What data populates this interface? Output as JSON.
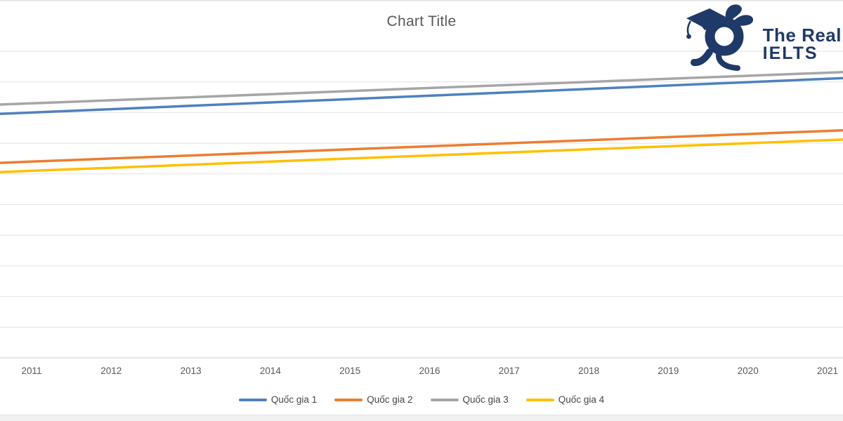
{
  "page": {
    "background": "#ffffff",
    "top_border_color": "#e8e8e8",
    "bottom_strip_color": "#f1f1f1"
  },
  "logo": {
    "brand_line1": "The Real",
    "brand_line2": "IELTS",
    "color": "#1f3a68"
  },
  "chart_data": {
    "type": "line",
    "title": "Chart Title",
    "title_color": "#595959",
    "xlabel": "",
    "ylabel": "",
    "categories": [
      "2011",
      "2012",
      "2013",
      "2014",
      "2015",
      "2016",
      "2017",
      "2018",
      "2019",
      "2020",
      "2021"
    ],
    "series": [
      {
        "name": "Quốc gia 1",
        "color": "#4f81bd",
        "values": [
          80,
          81.1,
          82.2,
          83.3,
          84.4,
          85.5,
          86.6,
          87.7,
          88.8,
          89.9,
          91
        ]
      },
      {
        "name": "Quốc gia 2",
        "color": "#ed7d31",
        "values": [
          64,
          65,
          66,
          67,
          68,
          69,
          70,
          71,
          72,
          73,
          74
        ]
      },
      {
        "name": "Quốc gia 3",
        "color": "#a6a6a6",
        "values": [
          83,
          84,
          85,
          86,
          87,
          88,
          89,
          90,
          91,
          92,
          93
        ]
      },
      {
        "name": "Quốc gia 4",
        "color": "#ffc000",
        "values": [
          61,
          62,
          63,
          64,
          65,
          66,
          67,
          68,
          69,
          70,
          71
        ]
      }
    ],
    "ylim": [
      0,
      100
    ],
    "gridline_step": 10,
    "grid": true,
    "grid_color": "#e2e2e2",
    "axis_line_color": "#c9c9c9",
    "tick_label_color": "#595959",
    "legend_position": "bottom",
    "y_axis_labels_visible": false
  }
}
